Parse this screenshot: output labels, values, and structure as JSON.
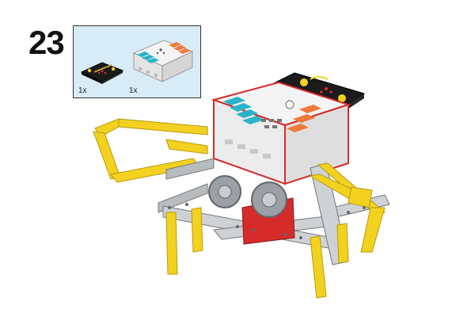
{
  "step": {
    "number": "23"
  },
  "parts": [
    {
      "name": "microbit-board",
      "quantity": "1x"
    },
    {
      "name": "expansion-board",
      "quantity": "1x"
    }
  ],
  "colors": {
    "parts_box_bg": "#d8ecf7",
    "beam_yellow": "#f2d21f",
    "beam_grey": "#b9bcbf",
    "gear_grey": "#9aa0a6",
    "case_white": "#f2f2f2",
    "port_cyan": "#2bb3c9",
    "port_orange": "#f07a3a",
    "red_frame": "#d62b2b",
    "board_black": "#1b1b1b"
  }
}
